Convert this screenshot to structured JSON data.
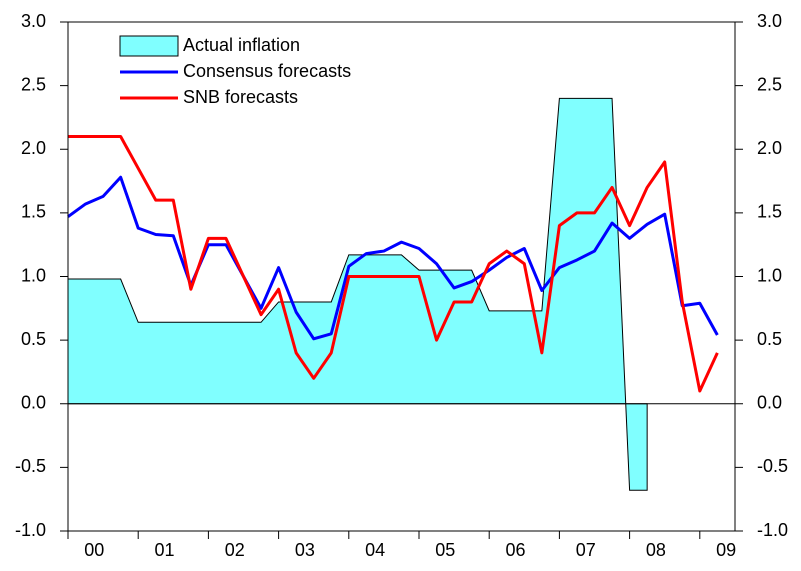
{
  "chart_data": {
    "type": "line",
    "categories": [
      "00",
      null,
      null,
      null,
      "01",
      null,
      null,
      null,
      "02",
      null,
      null,
      null,
      "03",
      null,
      null,
      null,
      "04",
      null,
      null,
      null,
      "05",
      null,
      null,
      null,
      "06",
      null,
      null,
      null,
      "07",
      null,
      null,
      null,
      "08",
      null,
      null,
      null,
      "09",
      null
    ],
    "series": [
      {
        "name": "Actual inflation",
        "style": "area",
        "color": "#80ffff",
        "edge": "#000000",
        "values": [
          0.98,
          0.98,
          0.98,
          0.98,
          0.64,
          0.64,
          0.64,
          0.64,
          0.64,
          0.64,
          0.64,
          0.64,
          0.8,
          0.8,
          0.8,
          0.8,
          1.17,
          1.17,
          1.17,
          1.17,
          1.05,
          1.05,
          1.05,
          1.05,
          0.73,
          0.73,
          0.73,
          0.73,
          2.4,
          2.4,
          2.4,
          2.4,
          -0.68,
          -0.68,
          null,
          null,
          null,
          null
        ]
      },
      {
        "name": "Consensus forecasts",
        "style": "line",
        "color": "#0000ff",
        "values": [
          1.47,
          1.57,
          1.63,
          1.78,
          1.38,
          1.33,
          1.32,
          0.93,
          1.25,
          1.25,
          1.0,
          0.75,
          1.07,
          0.72,
          0.51,
          0.55,
          1.08,
          1.18,
          1.2,
          1.27,
          1.22,
          1.1,
          0.91,
          0.96,
          1.05,
          1.15,
          1.22,
          0.89,
          1.07,
          1.13,
          1.2,
          1.42,
          1.3,
          1.41,
          1.49,
          0.77,
          0.79,
          0.54
        ]
      },
      {
        "name": "SNB forecasts",
        "style": "line",
        "color": "#ff0000",
        "values": [
          2.1,
          2.1,
          2.1,
          2.1,
          1.85,
          1.6,
          1.6,
          0.9,
          1.3,
          1.3,
          1.0,
          0.7,
          0.9,
          0.4,
          0.2,
          0.4,
          1.0,
          1.0,
          1.0,
          1.0,
          1.0,
          0.5,
          0.8,
          0.8,
          1.1,
          1.2,
          1.1,
          0.4,
          1.4,
          1.5,
          1.5,
          1.7,
          1.4,
          1.7,
          1.9,
          0.8,
          0.1,
          0.4
        ]
      }
    ],
    "ylim": [
      -1,
      3
    ],
    "yticks": [
      {
        "value": -1,
        "label": "-1.0"
      },
      -0.5,
      {
        "value": 0,
        "label": "0.0"
      },
      0.5,
      {
        "value": 1,
        "label": "1.0"
      },
      1.5,
      {
        "value": 2,
        "label": "2.0"
      },
      2.5,
      {
        "value": 3,
        "label": "3.0"
      }
    ],
    "y2lim": [
      -1,
      3
    ],
    "y2ticks": [
      {
        "value": -1,
        "label": "-1.0"
      },
      -0.5,
      {
        "value": 0,
        "label": "0.0"
      },
      0.5,
      {
        "value": 1,
        "label": "1.0"
      },
      1.5,
      {
        "value": 2,
        "label": "2.0"
      },
      2.5,
      {
        "value": 3,
        "label": "3.0"
      }
    ],
    "legend": "upper left",
    "grid": false
  }
}
